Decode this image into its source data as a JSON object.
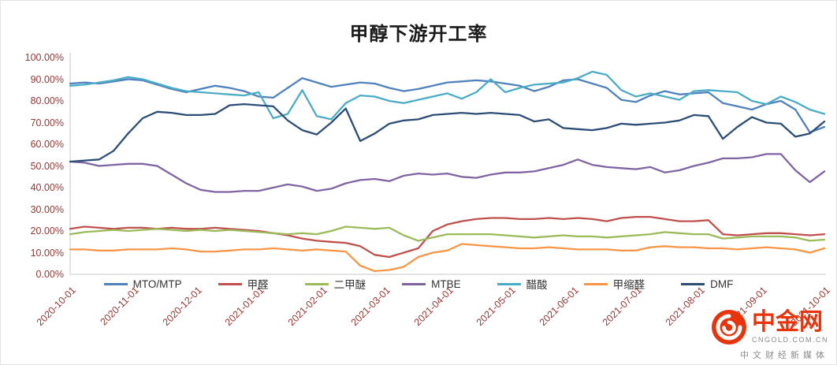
{
  "chart_data": {
    "type": "line",
    "title": "甲醇下游开工率",
    "xlabel": "",
    "ylabel": "",
    "ylim": [
      0,
      100
    ],
    "grid": false,
    "legend_position": "bottom",
    "y_tick_labels": [
      "0.00%",
      "10.00%",
      "20.00%",
      "30.00%",
      "40.00%",
      "50.00%",
      "60.00%",
      "70.00%",
      "80.00%",
      "90.00%",
      "100.00%"
    ],
    "x_labels": [
      "2020-10-01",
      "2020-11-01",
      "2020-12-01",
      "2021-01-01",
      "2021-02-01",
      "2021-03-01",
      "2021-04-01",
      "2021-05-01",
      "2021-06-01",
      "2021-07-01",
      "2021-08-01",
      "2021-09-01",
      "2021-10-01"
    ],
    "x_unit": "weekly observations, 2020-10-01 to 2021-10-01",
    "series": [
      {
        "name": "MTO/MTP",
        "color": "#4F81BD",
        "values": [
          88,
          88.5,
          88,
          89,
          90,
          89.5,
          87.5,
          85.5,
          84,
          85.5,
          87,
          86,
          84.5,
          82,
          81.5,
          86,
          90.5,
          88.5,
          86.5,
          87.5,
          88.5,
          88,
          86,
          84.5,
          85.5,
          87,
          88.5,
          89,
          89.5,
          89,
          88,
          87,
          84.5,
          86.5,
          89.5,
          90,
          88,
          86,
          80.5,
          79.5,
          82.5,
          84.5,
          83,
          83.5,
          84,
          79,
          77.5,
          76,
          78.5,
          80,
          76,
          65.5,
          68
        ]
      },
      {
        "name": "甲醛",
        "color": "#C0504D",
        "values": [
          21,
          22,
          21.5,
          21,
          21.5,
          21.5,
          21,
          21.5,
          21,
          21,
          21.5,
          21,
          20.5,
          20,
          19,
          18,
          16.5,
          15.5,
          15,
          14.5,
          13,
          9,
          8,
          10,
          12,
          20,
          23,
          24.5,
          25.5,
          26,
          26,
          25.5,
          25.5,
          26,
          25.5,
          26,
          25.5,
          24.5,
          26,
          26.5,
          26.5,
          25.5,
          24.5,
          24.5,
          25,
          18.5,
          18,
          18.5,
          19,
          19,
          18.5,
          18,
          18.5
        ]
      },
      {
        "name": "二甲醚",
        "color": "#9BBB59",
        "values": [
          18.5,
          19.5,
          20,
          20.5,
          20,
          20.5,
          21,
          20.5,
          20,
          20.5,
          20,
          20.5,
          20,
          19.5,
          19,
          18.5,
          19,
          18.5,
          20,
          22,
          21.5,
          21,
          21.5,
          18,
          15.5,
          17,
          18.5,
          18.5,
          18.5,
          18.5,
          18,
          17.5,
          17,
          17.5,
          18,
          17.5,
          17.5,
          17,
          17.5,
          18,
          18.5,
          19.5,
          19,
          18.5,
          18.5,
          16.5,
          17,
          17.5,
          17.5,
          17.5,
          17,
          15.5,
          16
        ]
      },
      {
        "name": "MTBE",
        "color": "#8064A2",
        "values": [
          52,
          51.5,
          50,
          50.5,
          51,
          51,
          50,
          46,
          42,
          39,
          38,
          38,
          38.5,
          38.5,
          40,
          41.5,
          40.5,
          38.5,
          39.5,
          42,
          43.5,
          44,
          43,
          45.5,
          46.5,
          46,
          46.5,
          45,
          44.5,
          46,
          47,
          47,
          47.5,
          49,
          50.5,
          53,
          50.5,
          49.5,
          49,
          48.5,
          49.5,
          47,
          48,
          50,
          51.5,
          53.5,
          53.5,
          54,
          55.5,
          55.5,
          48,
          42.5,
          47.5
        ]
      },
      {
        "name": "醋酸",
        "color": "#4BACC6",
        "values": [
          87,
          87.5,
          88.5,
          89.5,
          91,
          90,
          88,
          86,
          84.5,
          84,
          83.5,
          83,
          82.5,
          84,
          72,
          74,
          85,
          73,
          71.5,
          79,
          82.5,
          82,
          80,
          79,
          80.5,
          82,
          83.5,
          81,
          84,
          90,
          84,
          86,
          87.5,
          88,
          88.5,
          90.5,
          93.5,
          92,
          85,
          82,
          83.5,
          82,
          80.5,
          84.5,
          85,
          84.5,
          84,
          80,
          78.5,
          82,
          79.5,
          76,
          74
        ]
      },
      {
        "name": "甲缩醛",
        "color": "#F79646",
        "values": [
          11.5,
          11.5,
          11,
          11,
          11.5,
          11.5,
          11.5,
          12,
          11.5,
          10.5,
          10.5,
          11,
          11.5,
          11.5,
          12,
          11.5,
          11,
          11.5,
          11,
          10.5,
          4,
          1.5,
          2,
          3.5,
          8,
          10,
          11,
          14,
          13.5,
          13,
          12.5,
          12,
          12,
          12.5,
          12,
          11.5,
          11.5,
          11.5,
          11,
          11,
          12.5,
          13,
          12.5,
          12.5,
          12,
          12,
          11.5,
          12,
          12.5,
          12,
          11.5,
          10,
          12
        ]
      },
      {
        "name": "DMF",
        "color": "#2C4D75",
        "values": [
          52,
          52.5,
          53,
          57,
          65,
          72,
          75,
          74.5,
          73.5,
          73.5,
          74,
          78,
          78.5,
          78,
          77.5,
          71,
          66.5,
          64.5,
          70,
          76.5,
          61.5,
          65,
          69.5,
          71,
          71.5,
          73.5,
          74,
          74.5,
          74,
          74.5,
          74,
          73.5,
          70.5,
          71.5,
          67.5,
          67,
          66.5,
          67.5,
          69.5,
          69,
          69.5,
          70,
          71,
          73.5,
          73,
          62.5,
          68,
          72.5,
          70,
          69.5,
          63.5,
          65,
          70.5
        ]
      }
    ]
  },
  "styles": {
    "axis_label_color": "#953735",
    "axis_line_color": "#c9c9c9",
    "title_color": "#1a1a1a"
  },
  "watermark": {
    "brand": "中金网",
    "domain": "CNGOLD.COM.CN",
    "tagline": "中文财经新媒体",
    "brand_color": "#e8340c"
  }
}
